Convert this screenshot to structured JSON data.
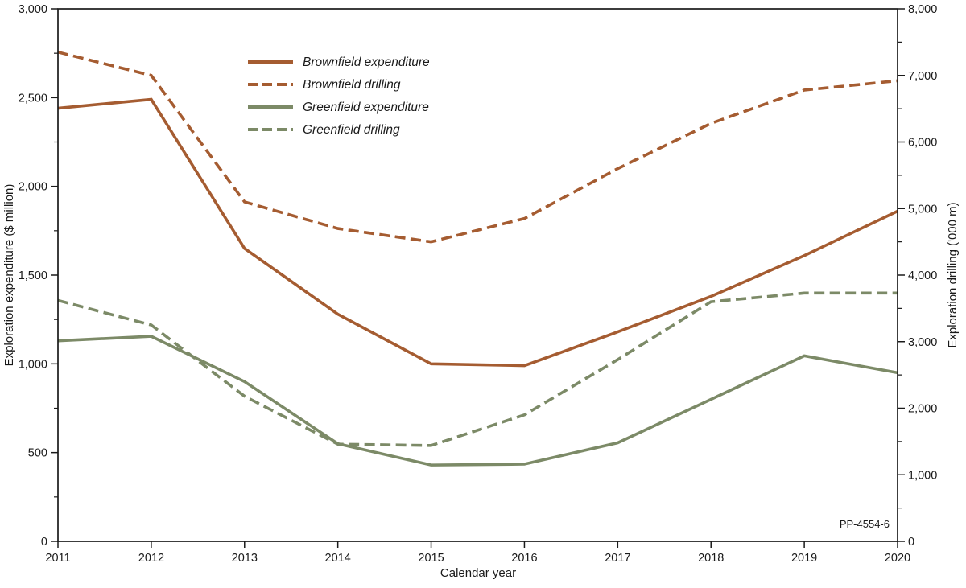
{
  "figure_label": "PP-4554-6",
  "chart_data": {
    "type": "line",
    "x": [
      2011,
      2012,
      2013,
      2014,
      2015,
      2016,
      2017,
      2018,
      2019,
      2020
    ],
    "xlabel": "Calendar year",
    "left_axis": {
      "label": "Exploration expenditure ($ million)",
      "min": 0,
      "max": 3000,
      "major_step": 500,
      "minor_step": 250
    },
    "right_axis": {
      "label": "Exploration drilling ('000 m)",
      "min": 0,
      "max": 8000,
      "major_step": 1000,
      "minor_step": 500
    },
    "grid": false,
    "legend_position": "inside-top-left",
    "series": [
      {
        "name": "Brownfield expenditure",
        "axis": "left",
        "line_style": "solid",
        "color": "#a55c31",
        "values": [
          2440,
          2490,
          1650,
          1280,
          1000,
          990,
          1180,
          1380,
          1610,
          1860
        ]
      },
      {
        "name": "Brownfield drilling",
        "axis": "right",
        "line_style": "dashed",
        "color": "#a55c31",
        "values": [
          7350,
          7000,
          5100,
          4700,
          4500,
          4850,
          5600,
          6280,
          6780,
          6920
        ]
      },
      {
        "name": "Greenfield expenditure",
        "axis": "left",
        "line_style": "solid",
        "color": "#7c8a67",
        "values": [
          1130,
          1155,
          900,
          550,
          430,
          435,
          555,
          800,
          1045,
          950
        ]
      },
      {
        "name": "Greenfield drilling",
        "axis": "right",
        "line_style": "dashed",
        "color": "#7c8a67",
        "values": [
          3620,
          3250,
          2180,
          1460,
          1440,
          1900,
          2730,
          3600,
          3730,
          3730
        ]
      }
    ]
  }
}
